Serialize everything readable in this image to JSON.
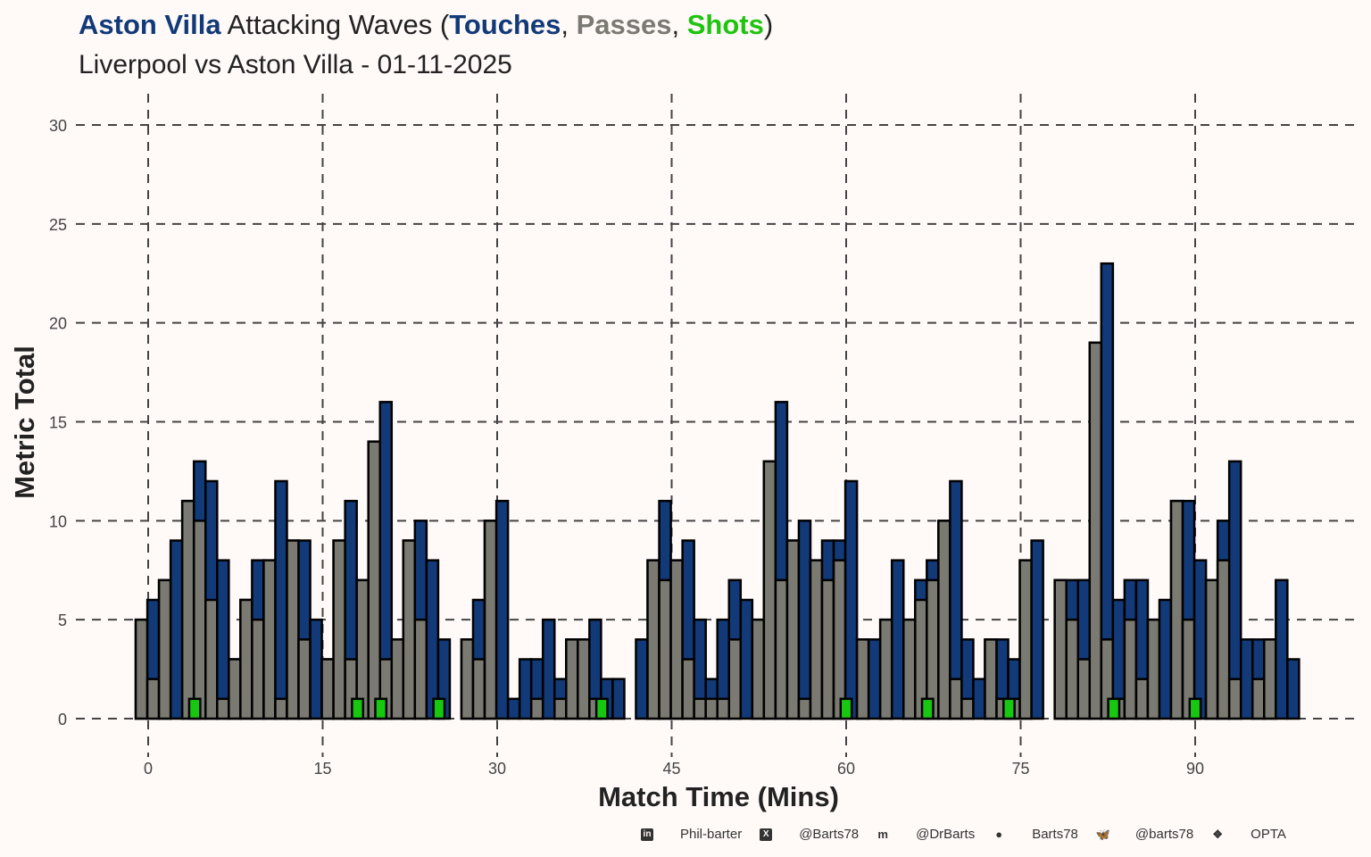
{
  "title": {
    "team": "Aston Villa",
    "middle": " Attacking Waves (",
    "touches": "Touches",
    "sep1": ", ",
    "passes": "Passes",
    "sep2": ", ",
    "shots": "Shots",
    "end": ")"
  },
  "subtitle": "Liverpool vs Aston Villa - 01-11-2025",
  "colors": {
    "touches": "#123a78",
    "passes": "#7a7a72",
    "shots": "#18c810",
    "title_passes": "#7a7a72",
    "title_shots": "#1fc40f"
  },
  "footer": [
    {
      "icon": "linkedin-icon",
      "glyph": "in",
      "label": "Phil-barter"
    },
    {
      "icon": "x-icon",
      "glyph": "X",
      "label": "@Barts78"
    },
    {
      "icon": "mastodon-icon",
      "glyph": "m",
      "label": "@DrBarts"
    },
    {
      "icon": "github-icon",
      "glyph": "●",
      "label": "Barts78"
    },
    {
      "icon": "bluesky-icon",
      "glyph": "🦋",
      "label": "@barts78"
    },
    {
      "icon": "dropbox-icon",
      "glyph": "❖",
      "label": "OPTA"
    }
  ],
  "chart_data": {
    "type": "bar",
    "title": "Aston Villa Attacking Waves (Touches, Passes, Shots)",
    "subtitle": "Liverpool vs Aston Villa - 01-11-2025",
    "xlabel": "Match Time (Mins)",
    "ylabel": "Metric Total",
    "xlim": [
      -1.1,
      100
    ],
    "ylim": [
      0,
      30
    ],
    "xticks": [
      "0",
      "15",
      "30",
      "45",
      "60",
      "75",
      "90"
    ],
    "yticks": [
      "0",
      "5",
      "10",
      "15",
      "20",
      "25",
      "30"
    ],
    "grid": true,
    "note_bar_span": "each minute m bar spans m-1 to m",
    "minutes_start": 0,
    "series": [
      {
        "name": "Touches",
        "values": [
          5,
          6,
          7,
          9,
          11,
          13,
          12,
          8,
          3,
          6,
          8,
          8,
          12,
          9,
          9,
          5,
          3,
          9,
          11,
          7,
          14,
          16,
          4,
          9,
          10,
          8,
          4,
          0,
          4,
          6,
          10,
          11,
          1,
          3,
          3,
          5,
          2,
          4,
          4,
          5,
          2,
          2,
          0,
          4,
          8,
          11,
          8,
          9,
          5,
          2,
          5,
          7,
          6,
          5,
          13,
          16,
          9,
          10,
          8,
          9,
          9,
          12,
          4,
          4,
          5,
          8,
          5,
          7,
          8,
          10,
          12,
          4,
          2,
          4,
          4,
          3,
          8,
          9,
          0,
          7,
          7,
          7,
          19,
          23,
          6,
          7,
          7,
          5,
          6,
          11,
          11,
          8,
          7,
          10,
          13,
          4,
          4,
          4,
          7,
          3
        ]
      },
      {
        "name": "Passes",
        "values": [
          5,
          2,
          7,
          0,
          11,
          10,
          6,
          1,
          3,
          6,
          5,
          8,
          1,
          9,
          4,
          0,
          3,
          9,
          3,
          7,
          14,
          3,
          4,
          9,
          5,
          0,
          0,
          0,
          4,
          3,
          10,
          0,
          0,
          0,
          1,
          0,
          1,
          4,
          4,
          1,
          0,
          0,
          0,
          0,
          8,
          7,
          8,
          3,
          1,
          1,
          1,
          4,
          0,
          5,
          13,
          7,
          9,
          1,
          8,
          7,
          8,
          0,
          4,
          0,
          5,
          0,
          5,
          6,
          7,
          10,
          2,
          1,
          0,
          4,
          1,
          1,
          8,
          0,
          0,
          7,
          5,
          3,
          19,
          4,
          1,
          5,
          2,
          5,
          0,
          11,
          5,
          0,
          7,
          8,
          2,
          0,
          2,
          4,
          0,
          0
        ]
      },
      {
        "name": "Shots",
        "minutes": [
          4,
          18,
          20,
          25,
          39,
          60,
          67,
          74,
          83,
          90
        ],
        "values": [
          1,
          1,
          1,
          1,
          1,
          1,
          1,
          1,
          1,
          1
        ]
      }
    ]
  }
}
